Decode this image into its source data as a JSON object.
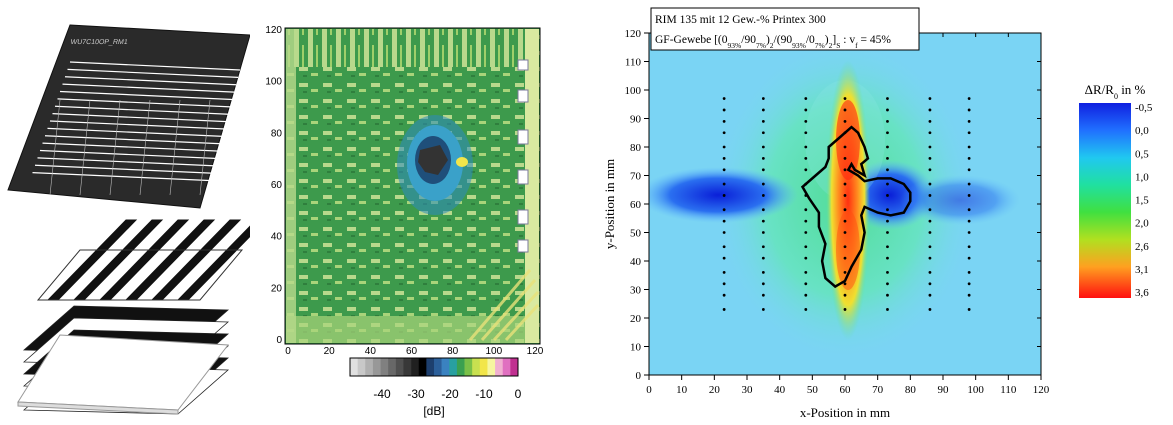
{
  "left_panel": {
    "sample_label": "WU7C10OP_RM1"
  },
  "cscan": {
    "x_ticks": [
      "0",
      "20",
      "40",
      "60",
      "80",
      "100",
      "120"
    ],
    "y_ticks": [
      "0",
      "20",
      "40",
      "60",
      "80",
      "100",
      "120"
    ],
    "colorbar_ticks": [
      "-40",
      "-30",
      "-20",
      "-10",
      "0"
    ],
    "colorbar_unit": "[dB]",
    "colors": {
      "background": "#3d9a4c",
      "light": "#b8d98c",
      "dark": "#2b3a2e"
    }
  },
  "chart_data": [
    {
      "type": "heatmap",
      "title_line1": "RIM 135 mit 12 Gew.-% Printex 300",
      "title_line2_parts": [
        "GF-Gewebe [(0",
        "93%",
        "/90",
        "7%",
        ")",
        "2",
        "/(90",
        "93%",
        "/0",
        "7%",
        ")",
        "2",
        "]",
        "S",
        " : v",
        "f",
        " = 45%"
      ],
      "xlabel": "x-Position in mm",
      "ylabel": "y-Position in mm",
      "xlim": [
        0,
        120
      ],
      "ylim": [
        0,
        120
      ],
      "x_ticks": [
        "0",
        "10",
        "20",
        "30",
        "40",
        "50",
        "60",
        "70",
        "80",
        "90",
        "100",
        "110",
        "120"
      ],
      "y_ticks": [
        "0",
        "10",
        "20",
        "30",
        "40",
        "50",
        "60",
        "70",
        "80",
        "90",
        "100",
        "110",
        "120"
      ],
      "legend_title_parts": [
        "ΔR/R",
        "0",
        " in %"
      ],
      "legend_ticks": [
        "-0,5",
        "0,0",
        "0,5",
        "1,0",
        "1,5",
        "2,0",
        "2,6",
        "3,1",
        "3,6"
      ],
      "grid_points_x": [
        23,
        35,
        48,
        60,
        73,
        86,
        98
      ],
      "grid_points_y": [
        23,
        28,
        32,
        36,
        41,
        45,
        50,
        54,
        58,
        63,
        67,
        72,
        76,
        80,
        85,
        89,
        93,
        97
      ],
      "outline_mm": [
        [
          58,
          83
        ],
        [
          62,
          87
        ],
        [
          64,
          85
        ],
        [
          66,
          80
        ],
        [
          67,
          76
        ],
        [
          65,
          74
        ],
        [
          66,
          70
        ],
        [
          63,
          72
        ],
        [
          62,
          74
        ],
        [
          61,
          72
        ],
        [
          64,
          70
        ],
        [
          66,
          68
        ],
        [
          70,
          69
        ],
        [
          74,
          69
        ],
        [
          78,
          67
        ],
        [
          80,
          64
        ],
        [
          80,
          61
        ],
        [
          78,
          57
        ],
        [
          74,
          56
        ],
        [
          70,
          57
        ],
        [
          66,
          59
        ],
        [
          65,
          56
        ],
        [
          66,
          50
        ],
        [
          65,
          44
        ],
        [
          62,
          38
        ],
        [
          60,
          33
        ],
        [
          57,
          31
        ],
        [
          54,
          34
        ],
        [
          53,
          40
        ],
        [
          54,
          46
        ],
        [
          52,
          52
        ],
        [
          52,
          57
        ],
        [
          49,
          62
        ],
        [
          47,
          66
        ],
        [
          51,
          70
        ],
        [
          54,
          73
        ],
        [
          55,
          76
        ],
        [
          55,
          80
        ],
        [
          58,
          83
        ]
      ]
    }
  ]
}
